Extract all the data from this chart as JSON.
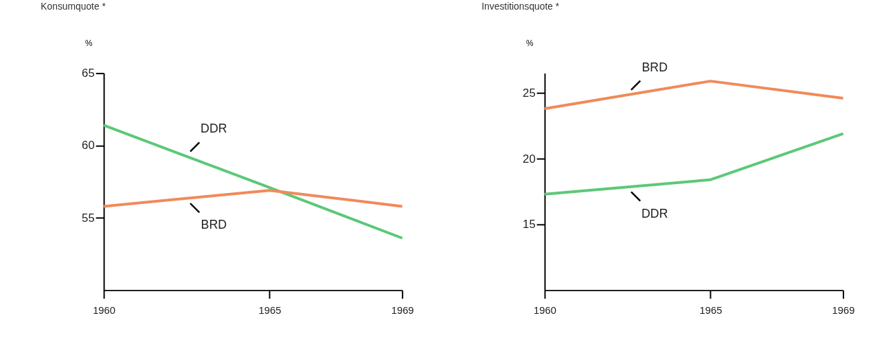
{
  "chart_data": [
    {
      "type": "line",
      "title": "Konsumquote *",
      "ylabel": "%",
      "x": [
        1960,
        1965,
        1969
      ],
      "xlim": [
        1960,
        1969
      ],
      "xticks": [
        1960,
        1965,
        1969
      ],
      "ylim": [
        50,
        65
      ],
      "yticks": [
        55,
        60,
        65
      ],
      "grid": false,
      "legend": false,
      "marker": "none",
      "line_style": "solid",
      "series": [
        {
          "name": "DDR",
          "color": "#5cc878",
          "values": [
            61.4,
            57.1,
            53.6
          ]
        },
        {
          "name": "BRD",
          "color": "#f08a5a",
          "values": [
            55.8,
            56.9,
            55.8
          ]
        }
      ]
    },
    {
      "type": "line",
      "title": "Investitionsquote *",
      "ylabel": "%",
      "x": [
        1960,
        1965,
        1969
      ],
      "xlim": [
        1960,
        1969
      ],
      "xticks": [
        1960,
        1965,
        1969
      ],
      "ylim": [
        10,
        26.5
      ],
      "yticks": [
        15,
        20,
        25
      ],
      "grid": false,
      "legend": false,
      "marker": "none",
      "line_style": "solid",
      "series": [
        {
          "name": "BRD",
          "color": "#f08a5a",
          "values": [
            23.8,
            25.9,
            24.6
          ]
        },
        {
          "name": "DDR",
          "color": "#5cc878",
          "values": [
            17.3,
            18.4,
            21.9
          ]
        }
      ]
    }
  ]
}
